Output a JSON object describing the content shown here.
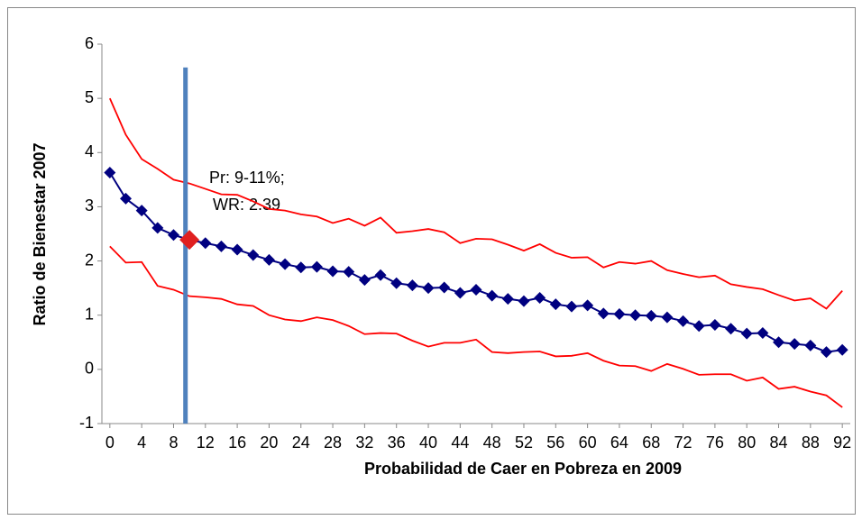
{
  "chart_data": {
    "type": "line",
    "x_label": "Probabilidad de Caer en Pobreza en 2009",
    "y_label": "Ratio de Bienestar 2007",
    "x": [
      0,
      2,
      4,
      6,
      8,
      10,
      12,
      14,
      16,
      18,
      20,
      22,
      24,
      26,
      28,
      30,
      32,
      34,
      36,
      38,
      40,
      42,
      44,
      46,
      48,
      50,
      52,
      54,
      56,
      58,
      60,
      62,
      64,
      66,
      68,
      70,
      72,
      74,
      76,
      78,
      80,
      82,
      84,
      86,
      88,
      90,
      92
    ],
    "xlim": [
      -1,
      93
    ],
    "xticks": [
      0,
      4,
      8,
      12,
      16,
      20,
      24,
      28,
      32,
      36,
      40,
      44,
      48,
      52,
      56,
      60,
      64,
      68,
      72,
      76,
      80,
      84,
      88,
      92
    ],
    "ylim": [
      -1,
      6
    ],
    "yticks": [
      -1,
      0,
      1,
      2,
      3,
      4,
      5,
      6
    ],
    "series": [
      {
        "color": "#000080",
        "marker": "diamond",
        "highlight_index": 5,
        "highlight_color": "#e02020",
        "values": [
          3.63,
          3.15,
          2.93,
          2.61,
          2.48,
          2.39,
          2.33,
          2.27,
          2.21,
          2.11,
          2.02,
          1.94,
          1.88,
          1.89,
          1.81,
          1.8,
          1.65,
          1.74,
          1.59,
          1.55,
          1.5,
          1.51,
          1.41,
          1.47,
          1.36,
          1.3,
          1.26,
          1.32,
          1.2,
          1.16,
          1.18,
          1.03,
          1.02,
          1.0,
          0.99,
          0.96,
          0.89,
          0.8,
          0.82,
          0.75,
          0.66,
          0.67,
          0.5,
          0.47,
          0.44,
          0.32,
          0.36
        ]
      },
      {
        "color": "#ff0000",
        "values": [
          5.0,
          4.33,
          3.88,
          3.7,
          3.5,
          3.43,
          3.33,
          3.23,
          3.22,
          3.1,
          2.96,
          2.93,
          2.86,
          2.82,
          2.7,
          2.78,
          2.65,
          2.8,
          2.52,
          2.55,
          2.59,
          2.53,
          2.33,
          2.41,
          2.4,
          2.3,
          2.19,
          2.31,
          2.15,
          2.06,
          2.07,
          1.88,
          1.98,
          1.95,
          2.0,
          1.83,
          1.76,
          1.7,
          1.73,
          1.57,
          1.52,
          1.48,
          1.37,
          1.27,
          1.31,
          1.12,
          1.45
        ]
      },
      {
        "color": "#ff0000",
        "values": [
          2.27,
          1.97,
          1.98,
          1.54,
          1.47,
          1.35,
          1.33,
          1.3,
          1.2,
          1.17,
          1.0,
          0.92,
          0.89,
          0.96,
          0.91,
          0.8,
          0.65,
          0.67,
          0.66,
          0.53,
          0.42,
          0.49,
          0.49,
          0.55,
          0.32,
          0.3,
          0.32,
          0.33,
          0.24,
          0.25,
          0.3,
          0.16,
          0.07,
          0.06,
          -0.03,
          0.1,
          0.01,
          -0.1,
          -0.09,
          -0.09,
          -0.21,
          -0.15,
          -0.36,
          -0.32,
          -0.41,
          -0.48,
          -0.7
        ]
      }
    ],
    "reference_line": {
      "x": 9.5,
      "top": 5.57,
      "color": "#4f81bd"
    },
    "annotation": [
      "Pr: 9-11%;",
      "WR: 2.39"
    ]
  }
}
